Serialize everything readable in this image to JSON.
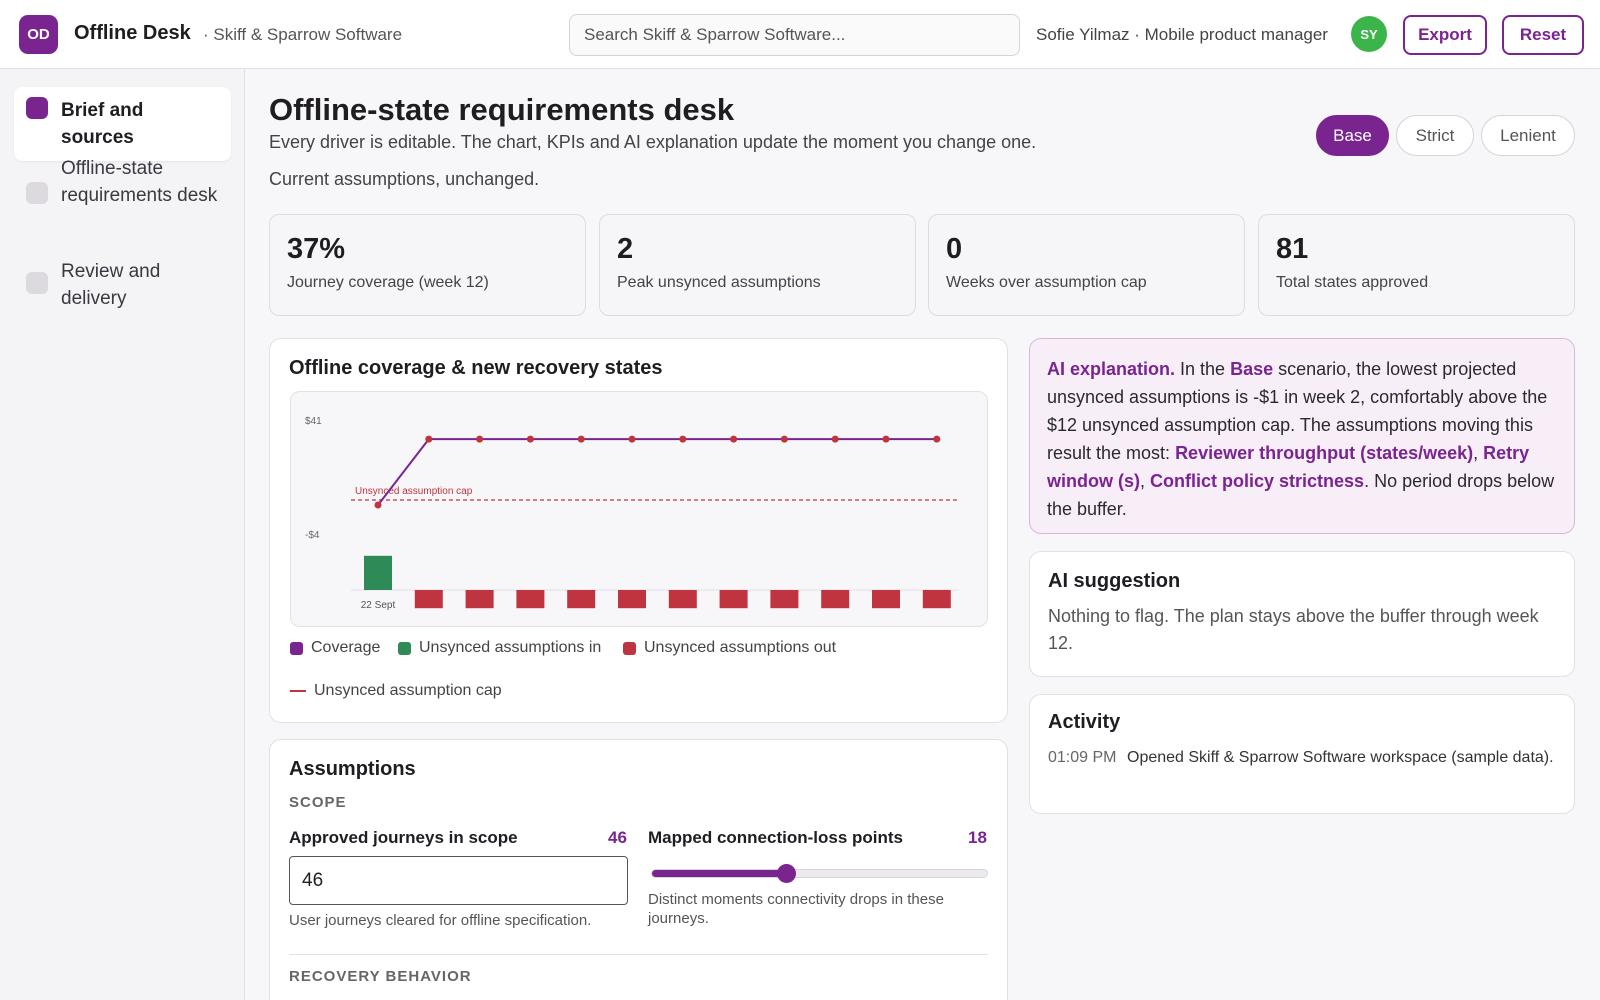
{
  "app": {
    "logo_text": "OD",
    "title": "Offline Desk",
    "org": "· Skiff & Sparrow Software",
    "search_placeholder": "Search Skiff & Sparrow Software...",
    "user": "Sofie Yilmaz · Mobile product manager",
    "avatar": "SY",
    "export_label": "Export",
    "reset_label": "Reset",
    "accent_color": "#7a2490"
  },
  "sidebar": {
    "items": [
      {
        "label": "Brief and sources",
        "active": true
      },
      {
        "label": "Offline-state requirements desk",
        "active": false
      },
      {
        "label": "Review and delivery",
        "active": false
      }
    ]
  },
  "page": {
    "title": "Offline-state requirements desk",
    "subtitle": "Every driver is editable. The chart, KPIs and AI explanation update the moment you change one.",
    "state": "Current assumptions, unchanged.",
    "scenarios": [
      "Base",
      "Strict",
      "Lenient"
    ],
    "active_scenario": "Base"
  },
  "kpis": [
    {
      "value": "37%",
      "label": "Journey coverage (week 12)"
    },
    {
      "value": "2",
      "label": "Peak unsynced assumptions"
    },
    {
      "value": "0",
      "label": "Weeks over assumption cap"
    },
    {
      "value": "81",
      "label": "Total states approved"
    }
  ],
  "chart_title": "Offline coverage & new recovery states",
  "chart_data": {
    "type": "line",
    "ytick_labels": [
      "$41",
      "-$4"
    ],
    "yticks": [
      41,
      -4
    ],
    "x": [
      1,
      2,
      3,
      4,
      5,
      6,
      7,
      8,
      9,
      10,
      11,
      12
    ],
    "xtick_label": "22 Sept",
    "series": [
      {
        "name": "Coverage",
        "type": "line",
        "color": "#7a2490",
        "values": [
          11,
          37,
          37,
          37,
          37,
          37,
          37,
          37,
          37,
          37,
          37,
          37
        ]
      },
      {
        "name": "Unsynced assumptions in",
        "type": "bar",
        "color": "#2e8b57",
        "values": [
          -9,
          0,
          0,
          0,
          0,
          0,
          0,
          0,
          0,
          0,
          0,
          0
        ]
      },
      {
        "name": "Unsynced assumptions out",
        "type": "bar",
        "color": "#c0343f",
        "values": [
          0,
          -14,
          -14,
          -14,
          -14,
          -14,
          -14,
          -14,
          -14,
          -14,
          -14,
          -14
        ]
      }
    ],
    "reference_line": {
      "name": "Unsynced assumption cap",
      "value": 12,
      "color": "#c0343f",
      "style": "dashed"
    },
    "legend": [
      "Coverage",
      "Unsynced assumptions in",
      "Unsynced assumptions out",
      "Unsynced assumption cap"
    ]
  },
  "assumptions": {
    "title": "Assumptions",
    "section_scope": "SCOPE",
    "field1": {
      "label": "Approved journeys in scope",
      "value": "46",
      "help": "User journeys cleared for offline specification."
    },
    "field2": {
      "label": "Mapped connection-loss points",
      "value": "18",
      "fraction": 0.4,
      "help": "Distinct moments connectivity drops in these journeys."
    },
    "section_recovery": "RECOVERY BEHAVIOR"
  },
  "ai": {
    "lead": "AI explanation.",
    "t1": " In the ",
    "scenario": "Base",
    "t2": " scenario, the lowest projected unsynced assumptions is -$1 in week 2, comfortably above the $12 unsynced assumption cap. The assumptions moving this result the most: ",
    "d1": "Reviewer throughput (states/week)",
    "sep1": ", ",
    "d2": "Retry window (s)",
    "sep2": ", ",
    "d3": "Conflict policy strictness",
    "t3": ". No period drops below the buffer."
  },
  "suggestion": {
    "title": "AI suggestion",
    "text": "Nothing to flag. The plan stays above the buffer through week 12."
  },
  "activity": {
    "title": "Activity",
    "items": [
      {
        "time": "01:09 PM",
        "text": "Opened Skiff & Sparrow Software workspace (sample data)."
      }
    ]
  }
}
